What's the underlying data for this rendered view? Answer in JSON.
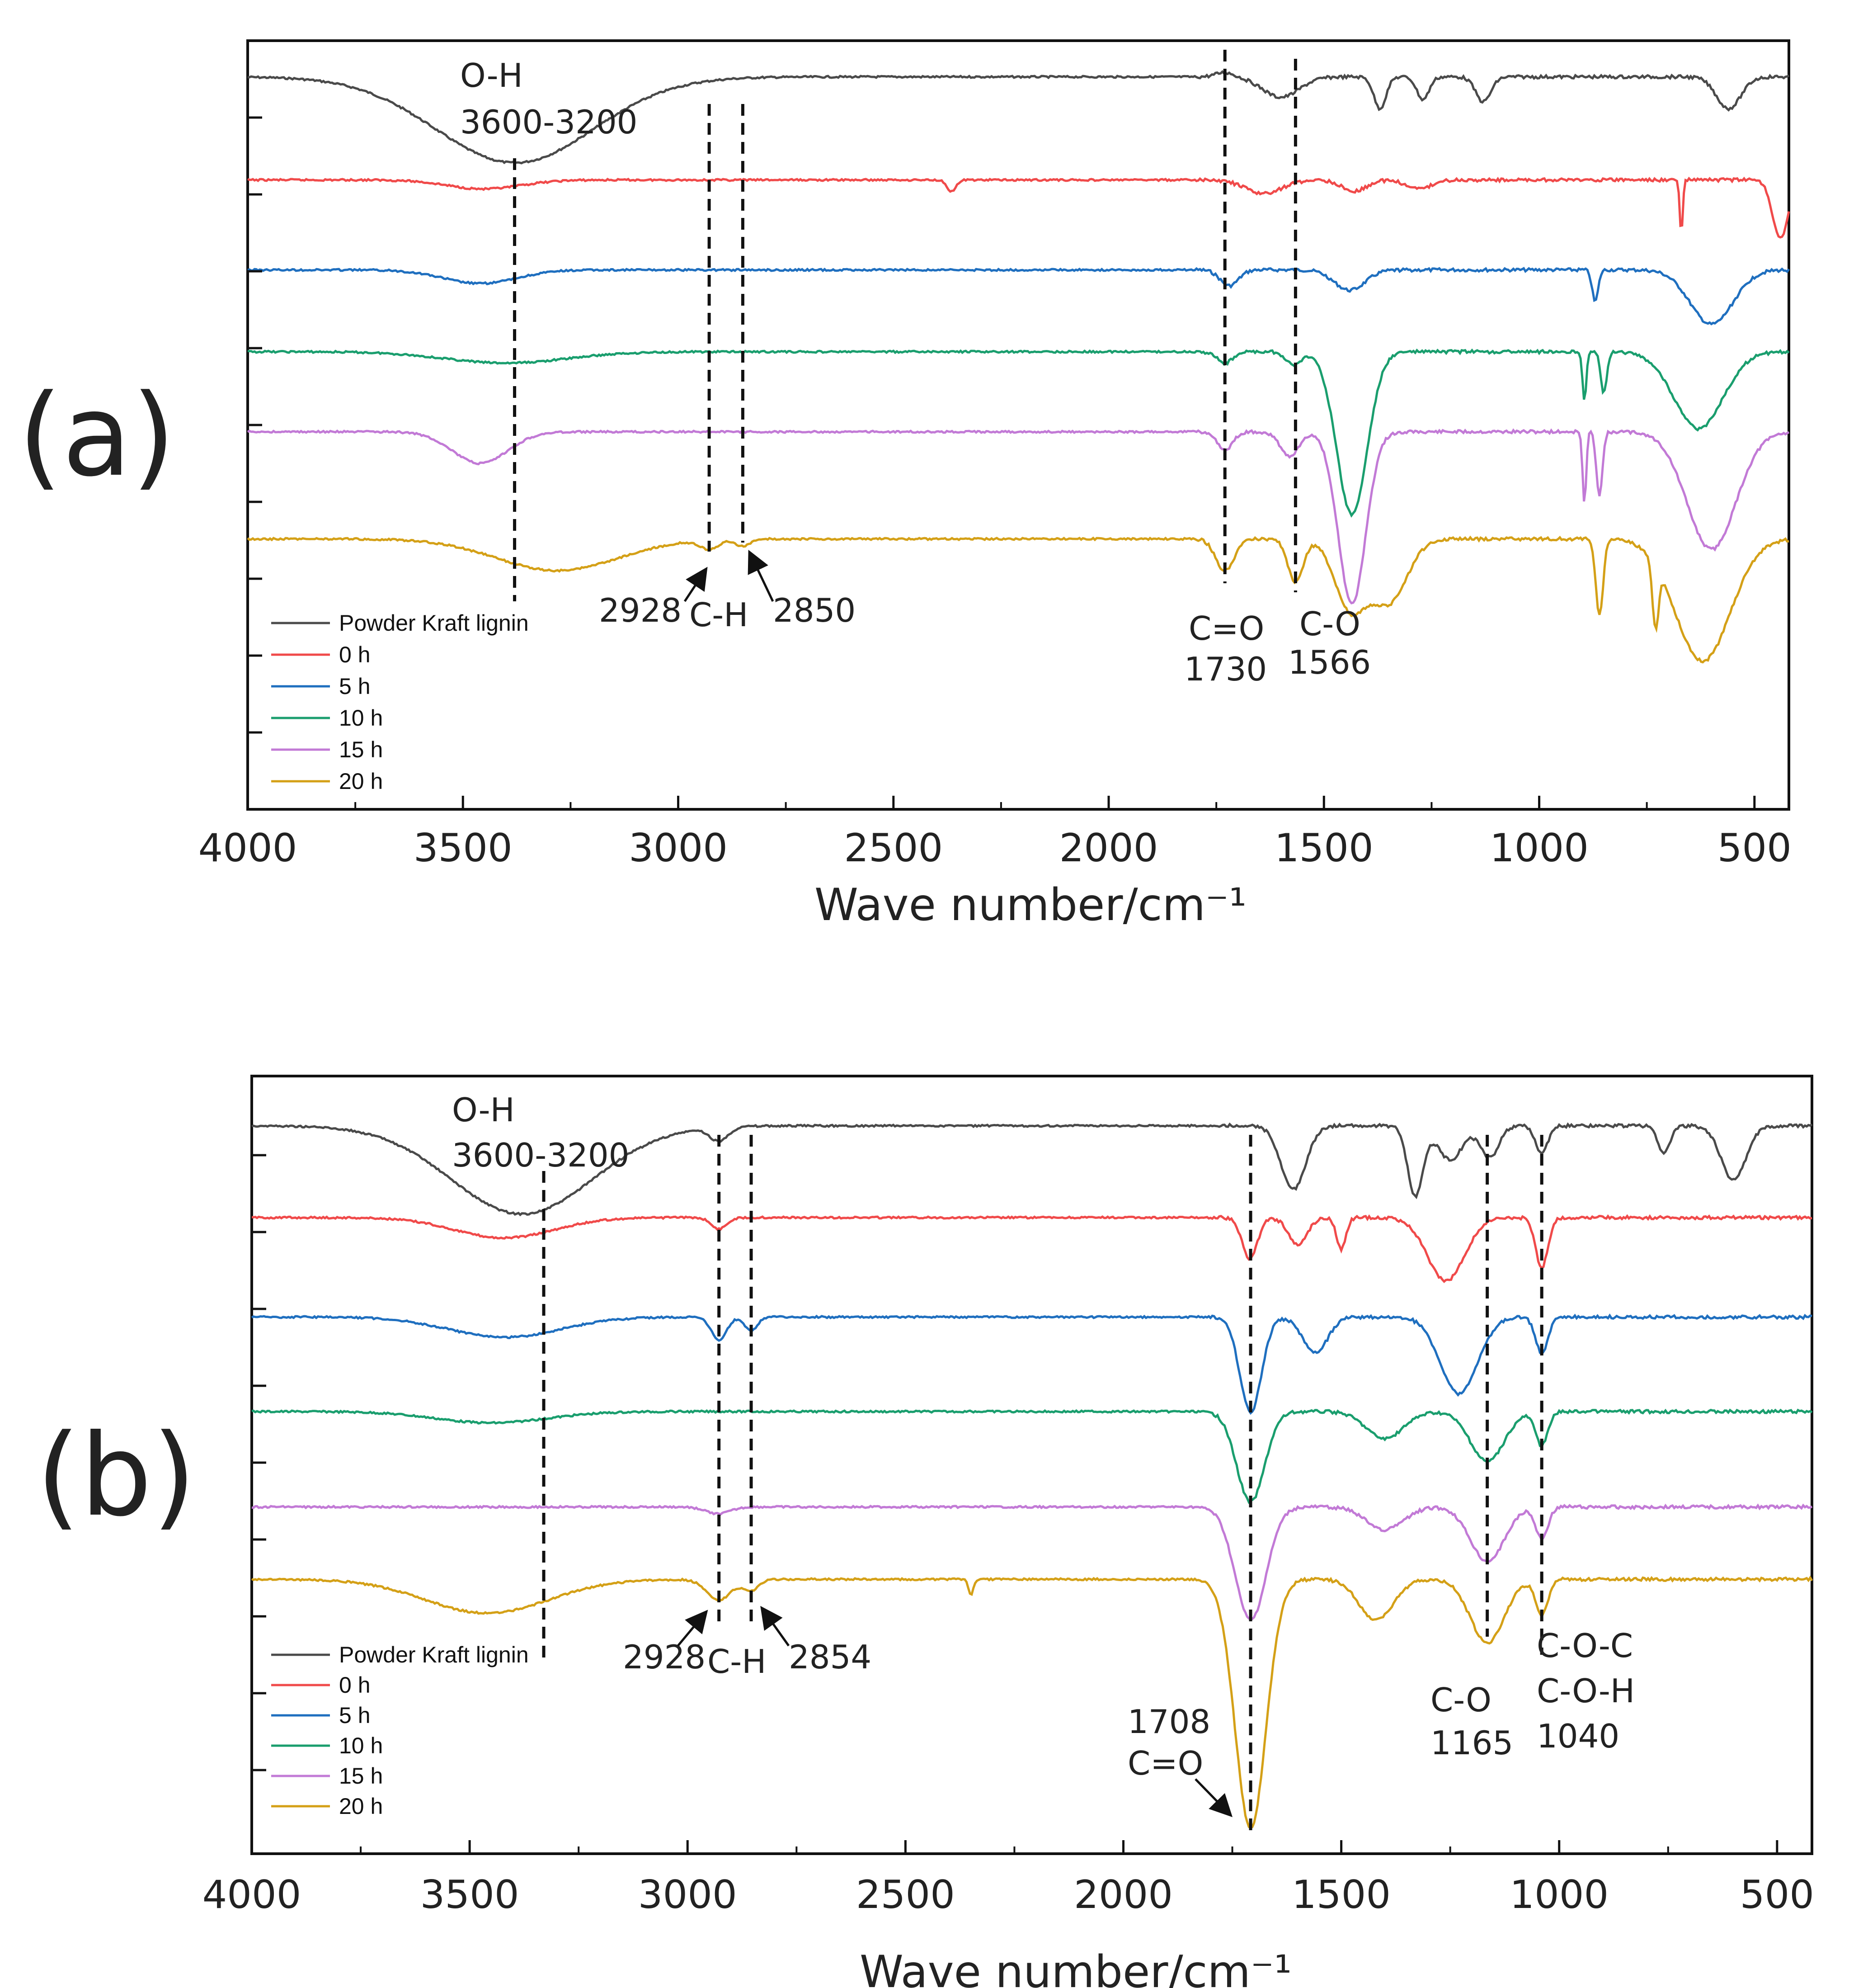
{
  "chart_data": [
    {
      "type": "line",
      "panel_label": "(a)",
      "xlabel": "Wave number/cm⁻¹",
      "xlim": [
        4000,
        420
      ],
      "xticks": [
        "4000",
        "3500",
        "3000",
        "2500",
        "2000",
        "1500",
        "1000",
        "500"
      ],
      "yticks_labeled": false,
      "series": [
        {
          "name": "Powder Kraft lignin",
          "color": "#4a4a4a"
        },
        {
          "name": "0 h",
          "color": "#f04a4a"
        },
        {
          "name": "5 h",
          "color": "#1f6fbf"
        },
        {
          "name": "10 h",
          "color": "#1a9e6e"
        },
        {
          "name": "15 h",
          "color": "#c27ad6"
        },
        {
          "name": "20 h",
          "color": "#d4a017"
        }
      ],
      "annotations": {
        "oh_name": "O-H",
        "oh_range": "3600-3200",
        "ch_left": "2928",
        "ch_name": "C-H",
        "ch_right": "2850",
        "co_double_name": "C=O",
        "co_double_value": "1730",
        "co_single_name": "C-O",
        "co_single_value": "1566"
      },
      "reference_lines": [
        3380,
        2928,
        2850,
        1730,
        1566
      ]
    },
    {
      "type": "line",
      "panel_label": "(b)",
      "xlabel": "Wave number/cm⁻¹",
      "xlim": [
        4000,
        420
      ],
      "xticks": [
        "4000",
        "3500",
        "3000",
        "2500",
        "2000",
        "1500",
        "1000",
        "500"
      ],
      "yticks_labeled": false,
      "series": [
        {
          "name": "Powder Kraft lignin",
          "color": "#4a4a4a"
        },
        {
          "name": "0 h",
          "color": "#f04a4a"
        },
        {
          "name": "5 h",
          "color": "#1f6fbf"
        },
        {
          "name": "10 h",
          "color": "#1a9e6e"
        },
        {
          "name": "15 h",
          "color": "#c27ad6"
        },
        {
          "name": "20 h",
          "color": "#d4a017"
        }
      ],
      "annotations": {
        "oh_name": "O-H",
        "oh_range": "3600-3200",
        "ch_left": "2928",
        "ch_name": "C-H",
        "ch_right": "2854",
        "co_double_value": "1708",
        "co_double_name": "C=O",
        "co_single_name": "C-O",
        "co_single_value": "1165",
        "coc_name": "C-O-C",
        "coh_name": "C-O-H",
        "coc_value": "1040"
      },
      "reference_lines": [
        3330,
        2928,
        2854,
        1708,
        1165,
        1040
      ]
    }
  ]
}
